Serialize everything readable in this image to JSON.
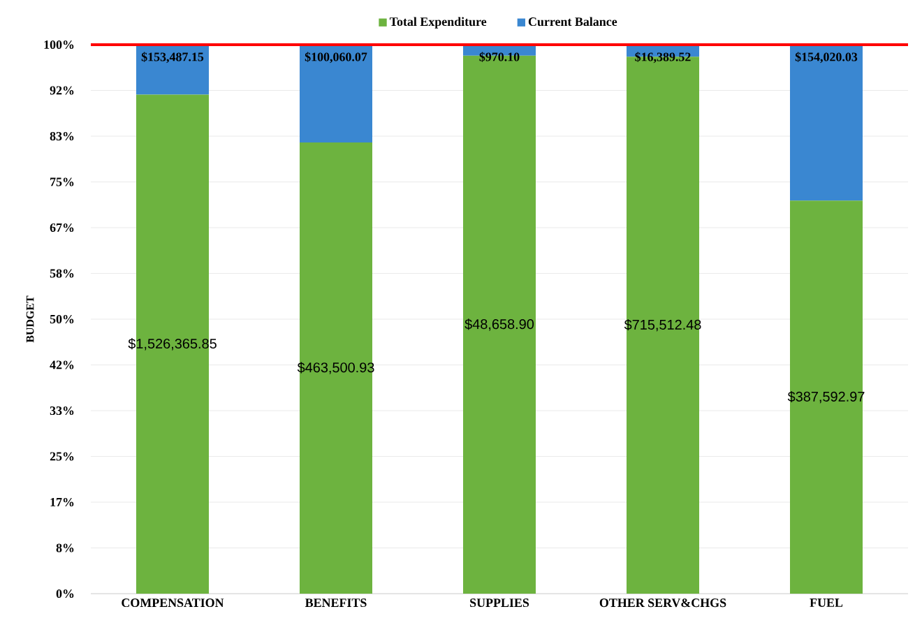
{
  "chart_data": {
    "type": "bar",
    "stacked": true,
    "ylabel": "BUDGET",
    "categories": [
      "COMPENSATION",
      "BENEFITS",
      "SUPPLIES",
      "OTHER SERV&CHGS",
      "FUEL"
    ],
    "series": [
      {
        "name": "Total Expenditure",
        "color": "#6db33f",
        "values": [
          90.9,
          82.2,
          98.0,
          97.8,
          71.6
        ]
      },
      {
        "name": "Current Balance",
        "color": "#3a87d1",
        "values": [
          9.1,
          17.8,
          2.0,
          2.2,
          28.4
        ]
      }
    ],
    "annotations": [
      "$1,526,365.85",
      "$463,500.93",
      "$48,658.90",
      "$715,512.48",
      "$387,592.97",
      "$153,487.15",
      "$100,060.07",
      "$970.10",
      "$16,389.52",
      "$154,020.03"
    ],
    "ylim": [
      0,
      100
    ],
    "yticks": [
      {
        "value": 0,
        "label": "0%"
      },
      {
        "value": 8.333,
        "label": "8%"
      },
      {
        "value": 16.667,
        "label": "17%"
      },
      {
        "value": 25,
        "label": "25%"
      },
      {
        "value": 33.333,
        "label": "33%"
      },
      {
        "value": 41.667,
        "label": "42%"
      },
      {
        "value": 50,
        "label": "50%"
      },
      {
        "value": 58.333,
        "label": "58%"
      },
      {
        "value": 66.667,
        "label": "67%"
      },
      {
        "value": 75,
        "label": "75%"
      },
      {
        "value": 83.333,
        "label": "83%"
      },
      {
        "value": 91.667,
        "label": "92%"
      },
      {
        "value": 100,
        "label": "100%"
      }
    ],
    "ref_lines": [
      {
        "axis": "y",
        "value": 100,
        "color": "#ff0000"
      }
    ],
    "grid": "y",
    "legend": "top"
  }
}
